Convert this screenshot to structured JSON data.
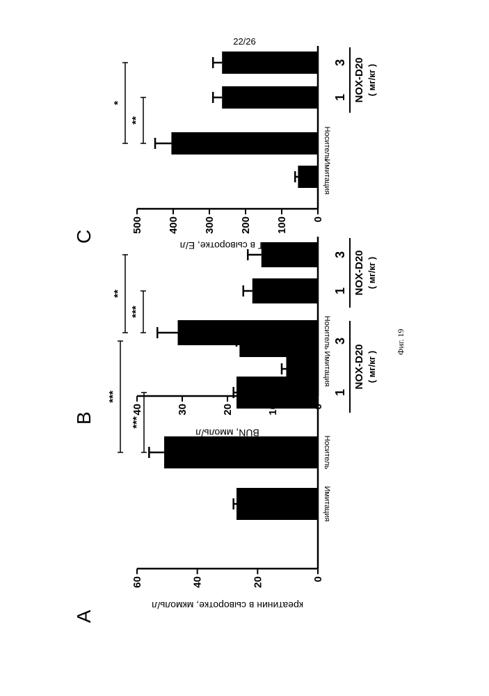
{
  "page_number": "22/26",
  "figure_caption": "Фиг. 19",
  "chart_data": [
    {
      "panel": "A",
      "type": "bar",
      "ylabel": "креатинин в сыворотке, мкмоль/л",
      "ylim": [
        0,
        60
      ],
      "yticks": [
        "0",
        "20",
        "40",
        "60"
      ],
      "categories": [
        "Имитация",
        "Носитель",
        "1",
        "3"
      ],
      "values": [
        27,
        51,
        27,
        26
      ],
      "errors": [
        1,
        5,
        1,
        1
      ],
      "group_label": "NOX-D20",
      "units_label": "( мг/кг )",
      "significance": [
        {
          "label": "***",
          "from": 1,
          "to": 2
        },
        {
          "label": "***",
          "from": 1,
          "to": 3
        }
      ]
    },
    {
      "panel": "B",
      "type": "bar",
      "ylabel": "BUN, ммоль/л",
      "ylim": [
        0,
        40
      ],
      "yticks": [
        "0",
        "10",
        "20",
        "30",
        "40"
      ],
      "categories": [
        "Имитация",
        "Носитель",
        "1",
        "3"
      ],
      "values": [
        7,
        31,
        14.5,
        12.5
      ],
      "errors": [
        1,
        4.5,
        2,
        3
      ],
      "group_label": "NOX-D20",
      "units_label": "( мг/кг )",
      "significance": [
        {
          "label": "***",
          "from": 1,
          "to": 2
        },
        {
          "label": "**",
          "from": 1,
          "to": 3
        }
      ]
    },
    {
      "panel": "C",
      "type": "bar",
      "ylabel": "ALT в сыворотке, Е/л",
      "ylim": [
        0,
        500
      ],
      "yticks": [
        "0",
        "100",
        "200",
        "300",
        "400",
        "500"
      ],
      "categories": [
        "Имитация",
        "Носитель",
        "1",
        "3"
      ],
      "values": [
        55,
        405,
        265,
        265
      ],
      "errors": [
        8,
        45,
        25,
        25
      ],
      "group_label": "NOX-D20",
      "units_label": "( мг/кг )",
      "significance": [
        {
          "label": "**",
          "from": 1,
          "to": 2
        },
        {
          "label": "*",
          "from": 1,
          "to": 3
        }
      ]
    }
  ]
}
